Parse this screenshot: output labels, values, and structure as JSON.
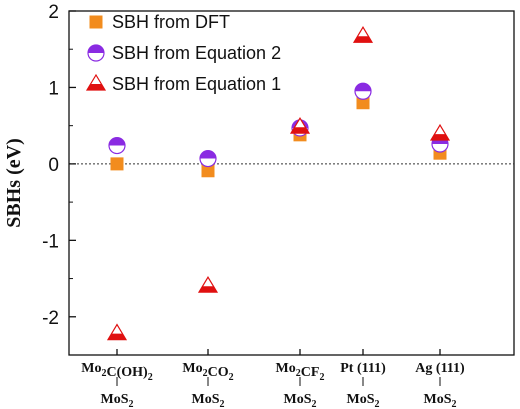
{
  "chart_data": {
    "type": "scatter",
    "title": "",
    "xlabel": "",
    "ylabel": "SBHs (eV)",
    "ylim": [
      -2.5,
      2
    ],
    "yticks": [
      -2,
      -1,
      0,
      1,
      2
    ],
    "grid": false,
    "legend_position": "top-left",
    "categories": [
      {
        "top": "Mo2C(OH)2",
        "bottom": "MoS2"
      },
      {
        "top": "Mo2CO2",
        "bottom": "MoS2"
      },
      {
        "top": "Mo2CF2",
        "bottom": "MoS2"
      },
      {
        "top": "Pt (111)",
        "bottom": "MoS2"
      },
      {
        "top": "Ag (111)",
        "bottom": "MoS2"
      }
    ],
    "series": [
      {
        "name": "SBH from DFT",
        "marker": "square",
        "color": "#f28c1e",
        "values": [
          0.0,
          -0.09,
          0.38,
          0.8,
          0.14
        ]
      },
      {
        "name": "SBH from Equation 2",
        "marker": "half-circle",
        "color": "#8a2be2",
        "values": [
          0.24,
          0.07,
          0.47,
          0.95,
          0.26
        ]
      },
      {
        "name": "SBH from Equation 1",
        "marker": "half-triangle",
        "color": "#e01010",
        "values": [
          -2.22,
          -1.6,
          0.48,
          1.67,
          0.39
        ]
      }
    ]
  }
}
